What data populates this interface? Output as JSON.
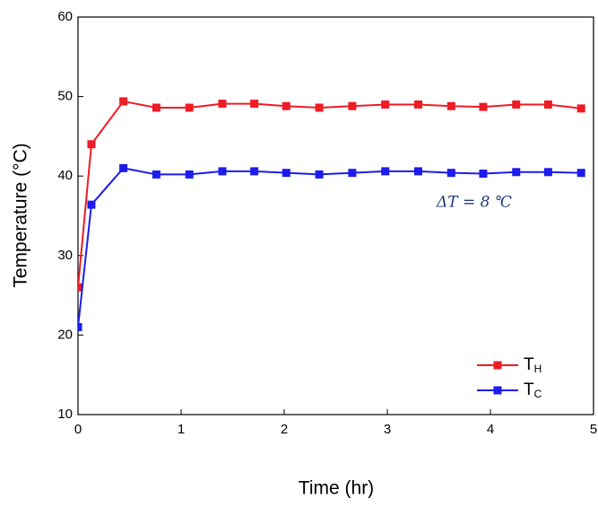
{
  "chart_data": {
    "type": "line",
    "x_label": "Time (hr)",
    "y_label": "Temperature (°C)",
    "annotation": "ΔT = 8 ℃",
    "x": [
      0,
      0.13,
      0.44,
      0.76,
      1.08,
      1.4,
      1.71,
      2.02,
      2.34,
      2.66,
      2.98,
      3.3,
      3.62,
      3.93,
      4.25,
      4.56,
      4.88
    ],
    "series": [
      {
        "name": "TH",
        "color": "#ee1c25",
        "values": [
          26,
          44,
          49.4,
          48.6,
          48.6,
          49.1,
          49.1,
          48.8,
          48.6,
          48.8,
          49,
          49,
          48.8,
          48.7,
          49,
          49,
          48.5
        ]
      },
      {
        "name": "TC",
        "color": "#1c1cee",
        "values": [
          21,
          36.4,
          41,
          40.2,
          40.2,
          40.6,
          40.6,
          40.4,
          40.2,
          40.4,
          40.6,
          40.6,
          40.4,
          40.3,
          40.5,
          40.5,
          40.4
        ]
      }
    ],
    "xlim": [
      0,
      5
    ],
    "xticks": [
      0,
      1,
      2,
      3,
      4,
      5
    ],
    "ylim": [
      10,
      60
    ],
    "yticks": [
      10,
      20,
      30,
      40,
      50,
      60
    ],
    "grid": false,
    "legend": "lower right"
  }
}
